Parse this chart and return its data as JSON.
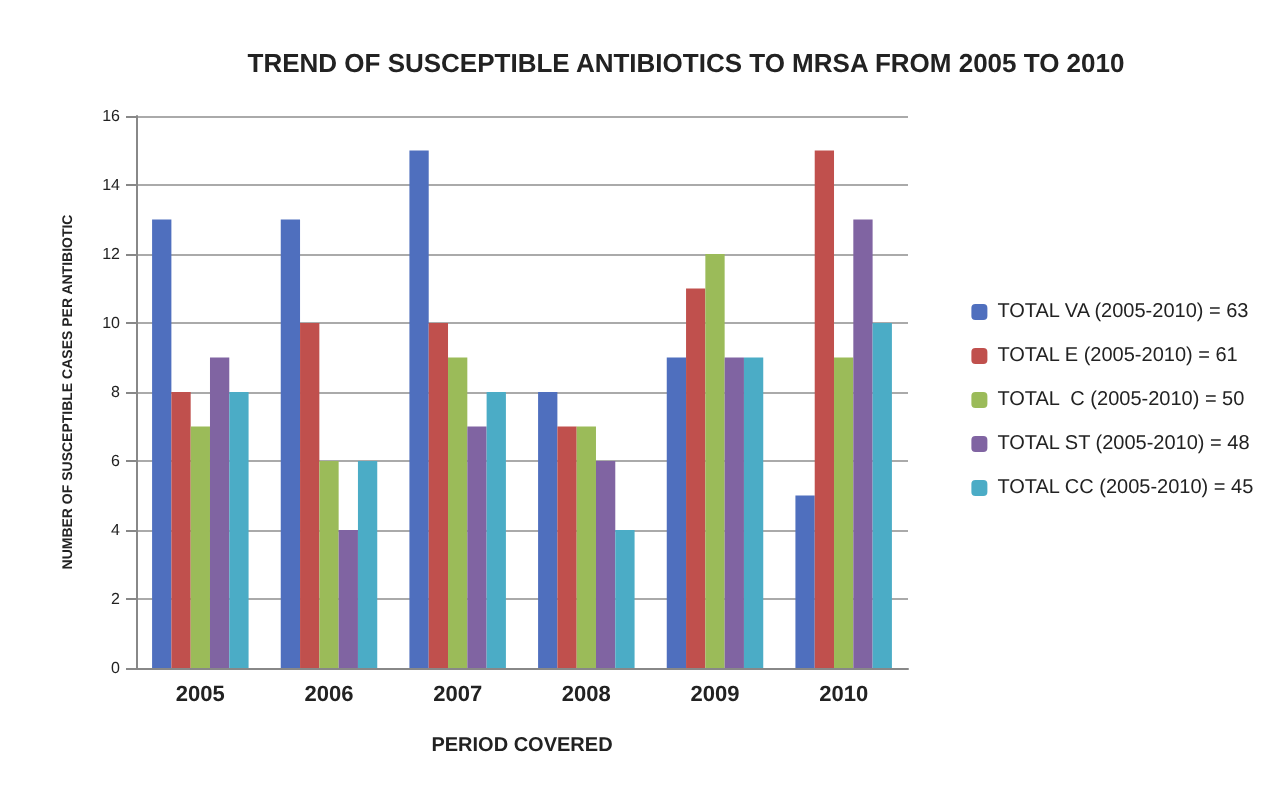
{
  "chart_data": {
    "type": "bar",
    "title": "TREND OF SUSCEPTIBLE ANTIBIOTICS TO MRSA FROM 2005 TO 2010",
    "xlabel": "PERIOD COVERED",
    "ylabel": "NUMBER OF SUSCEPTIBLE CASES PER ANTIBIOTIC",
    "categories": [
      "2005",
      "2006",
      "2007",
      "2008",
      "2009",
      "2010"
    ],
    "series": [
      {
        "name": "TOTAL VA (2005-2010) = 63",
        "color": "#4f6fbe",
        "values": [
          13,
          13,
          15,
          8,
          9,
          5
        ]
      },
      {
        "name": "TOTAL E (2005-2010) = 61",
        "color": "#c0504d",
        "values": [
          8,
          10,
          10,
          7,
          11,
          15
        ]
      },
      {
        "name": "TOTAL  C (2005-2010) = 50",
        "color": "#9bbb59",
        "values": [
          7,
          6,
          9,
          7,
          12,
          9
        ]
      },
      {
        "name": "TOTAL ST (2005-2010) = 48",
        "color": "#8064a2",
        "values": [
          9,
          4,
          7,
          6,
          9,
          13
        ]
      },
      {
        "name": "TOTAL CC (2005-2010) = 45",
        "color": "#4bacc6",
        "values": [
          8,
          6,
          8,
          4,
          9,
          10
        ]
      }
    ],
    "ylim": [
      0,
      16
    ],
    "yticks": [
      0,
      2,
      4,
      6,
      8,
      10,
      12,
      14,
      16
    ],
    "grid": "y",
    "legend": "right"
  }
}
